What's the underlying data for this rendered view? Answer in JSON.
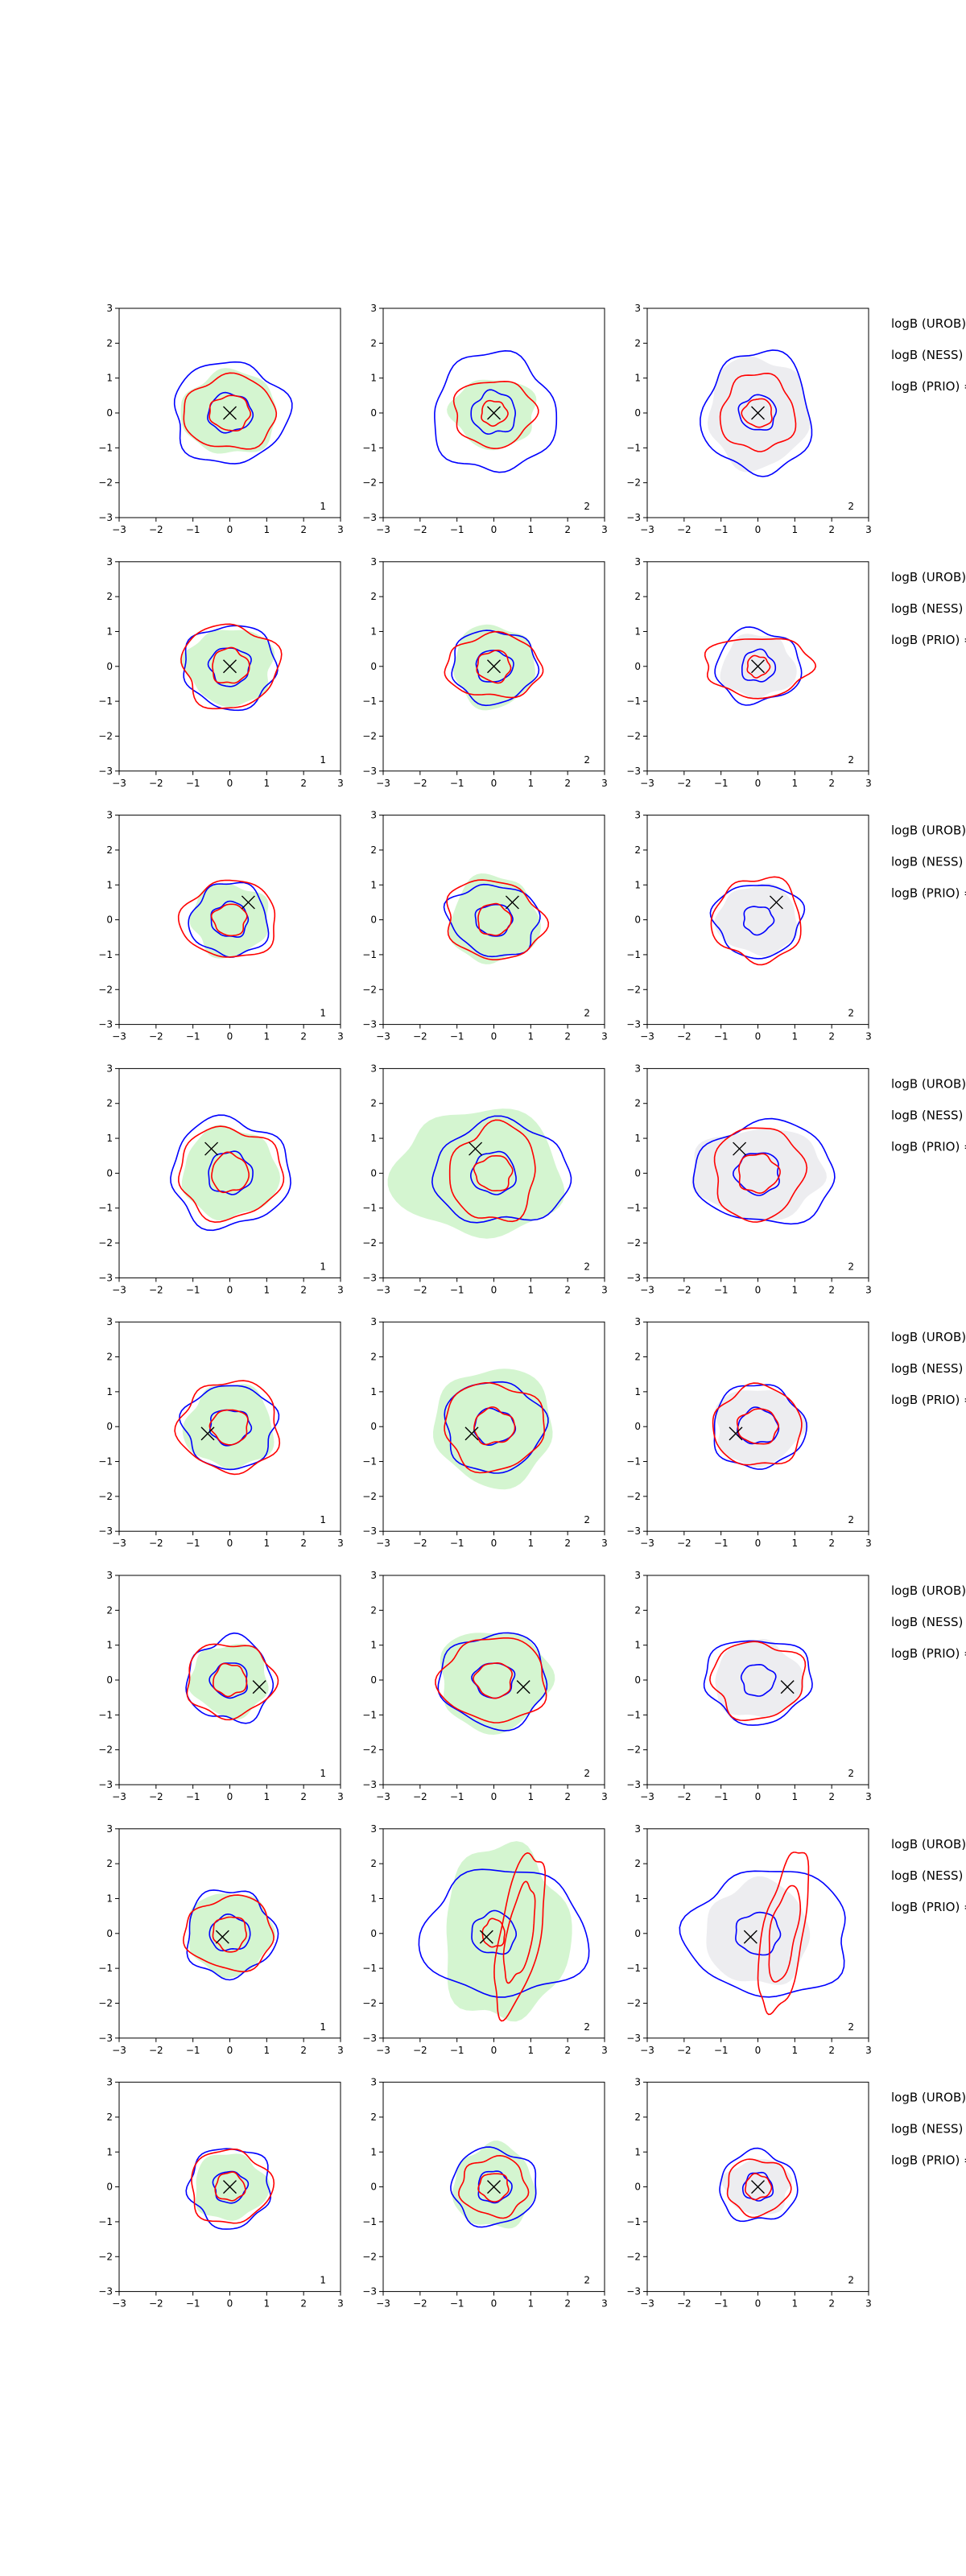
{
  "chart_data": {
    "type": "contour-grid",
    "rows": 8,
    "cols": 3,
    "xlim": [
      -3,
      3
    ],
    "ylim": [
      -3,
      3
    ],
    "xticks": [
      -3,
      -2,
      -1,
      0,
      1,
      2,
      3
    ],
    "yticks": [
      -3,
      -2,
      -1,
      0,
      1,
      2,
      3
    ],
    "col_corner_labels": [
      "1",
      "2",
      "2"
    ],
    "col_fill": [
      "green",
      "green",
      "grey"
    ],
    "row_annotations": [
      "logB (UROB)",
      "logB (NESS) =",
      "logB (PRIO) ="
    ],
    "series_colors": {
      "blue": "#0000ff",
      "red": "#ff0000",
      "green_fill": "#d4f5d0",
      "grey_fill": "#ededf0",
      "marker": "#000000"
    },
    "panels": [
      {
        "marker": [
          0.0,
          0.0
        ],
        "cols": [
          {
            "fill": [
              {
                "sx": 1.3,
                "sy": 1.2,
                "rot": 0
              }
            ],
            "blue": [
              {
                "sx": 1.55,
                "sy": 1.45,
                "rot": 0
              },
              {
                "sx": 0.6,
                "sy": 0.55,
                "rot": 0
              }
            ],
            "red": [
              {
                "sx": 1.25,
                "sy": 1.05,
                "rot": 0
              },
              {
                "sx": 0.55,
                "sy": 0.5,
                "rot": 0
              }
            ]
          },
          {
            "fill": [
              {
                "sx": 1.15,
                "sy": 1.0,
                "rot": 0
              }
            ],
            "blue": [
              {
                "sx": 1.65,
                "sy": 1.7,
                "rot": 0
              },
              {
                "sx": 0.6,
                "sy": 0.6,
                "rot": 0
              }
            ],
            "red": [
              {
                "sx": 1.1,
                "sy": 0.95,
                "rot": 0
              },
              {
                "sx": 0.35,
                "sy": 0.35,
                "rot": 0
              }
            ]
          },
          {
            "fill": [
              {
                "sx": 1.35,
                "sy": 1.6,
                "rot": 0
              },
              {
                "sx": 0.5,
                "sy": 0.5,
                "rot": 0
              }
            ],
            "blue": [
              {
                "sx": 1.45,
                "sy": 1.75,
                "rot": 0
              },
              {
                "sx": 0.5,
                "sy": 0.5,
                "rot": 0
              }
            ],
            "red": [
              {
                "sx": 1.0,
                "sy": 1.1,
                "rot": 0
              },
              {
                "sx": 0.4,
                "sy": 0.4,
                "rot": 0
              }
            ]
          }
        ]
      },
      {
        "marker": [
          0.0,
          0.0
        ],
        "cols": [
          {
            "fill": [
              {
                "sx": 1.2,
                "sy": 1.1,
                "rot": 0
              }
            ],
            "blue": [
              {
                "sx": 1.25,
                "sy": 1.2,
                "rot": 0
              },
              {
                "sx": 0.55,
                "sy": 0.55,
                "rot": 0
              }
            ],
            "red": [
              {
                "sx": 1.3,
                "sy": 1.2,
                "rot": 0
              },
              {
                "sx": 0.5,
                "sy": 0.5,
                "rot": 0
              }
            ]
          },
          {
            "fill": [
              {
                "sx": 1.1,
                "sy": 1.2,
                "rot": 0
              }
            ],
            "blue": [
              {
                "sx": 1.15,
                "sy": 1.05,
                "rot": 0
              },
              {
                "sx": 0.5,
                "sy": 0.45,
                "rot": 0
              }
            ],
            "red": [
              {
                "sx": 1.3,
                "sy": 0.9,
                "rot": 0
              },
              {
                "sx": 0.45,
                "sy": 0.45,
                "rot": 0
              }
            ]
          },
          {
            "fill": [
              {
                "sx": 1.0,
                "sy": 0.9,
                "rot": 0
              }
            ],
            "blue": [
              {
                "sx": 1.15,
                "sy": 1.05,
                "rot": 0
              },
              {
                "sx": 0.45,
                "sy": 0.45,
                "rot": 0
              }
            ],
            "red": [
              {
                "sx": 1.45,
                "sy": 0.85,
                "rot": 0
              },
              {
                "sx": 0.3,
                "sy": 0.3,
                "rot": 0
              }
            ]
          }
        ]
      },
      {
        "marker": [
          0.5,
          0.5
        ],
        "cols": [
          {
            "fill": [
              {
                "sx": 1.05,
                "sy": 1.05,
                "rot": 0
              }
            ],
            "blue": [
              {
                "sx": 1.05,
                "sy": 1.05,
                "rot": 0
              },
              {
                "sx": 0.5,
                "sy": 0.5,
                "rot": 0
              }
            ],
            "red": [
              {
                "sx": 1.3,
                "sy": 1.1,
                "rot": 0
              },
              {
                "sx": 0.45,
                "sy": 0.45,
                "rot": 0
              }
            ]
          },
          {
            "fill": [
              {
                "sx": 1.2,
                "sy": 1.25,
                "rot": 0
              }
            ],
            "blue": [
              {
                "sx": 1.25,
                "sy": 1.0,
                "rot": -15
              },
              {
                "sx": 0.5,
                "sy": 0.45,
                "rot": 0
              }
            ],
            "red": [
              {
                "sx": 1.35,
                "sy": 1.1,
                "rot": -20
              },
              {
                "sx": 0.45,
                "sy": 0.45,
                "rot": 0
              }
            ]
          },
          {
            "fill": [
              {
                "sx": 1.1,
                "sy": 1.0,
                "rot": 0
              }
            ],
            "blue": [
              {
                "sx": 1.2,
                "sy": 1.05,
                "rot": 0
              },
              {
                "sx": 0.4,
                "sy": 0.4,
                "rot": 0
              }
            ],
            "red": [
              {
                "sx": 1.2,
                "sy": 1.2,
                "rot": -20
              }
            ]
          }
        ]
      },
      {
        "marker": [
          -0.5,
          0.7
        ],
        "cols": [
          {
            "fill": [
              {
                "sx": 1.3,
                "sy": 1.3,
                "rot": 0
              }
            ],
            "blue": [
              {
                "sx": 1.6,
                "sy": 1.55,
                "rot": 0
              },
              {
                "sx": 0.6,
                "sy": 0.6,
                "rot": 0
              }
            ],
            "red": [
              {
                "sx": 1.4,
                "sy": 1.3,
                "rot": 0
              },
              {
                "sx": 0.5,
                "sy": 0.55,
                "rot": 0
              }
            ]
          },
          {
            "fill": [
              {
                "sx": 2.3,
                "sy": 1.8,
                "rot": 0,
                "cx": -0.4
              }
            ],
            "blue": [
              {
                "sx": 1.85,
                "sy": 1.45,
                "rot": 0,
                "cx": 0.2
              },
              {
                "sx": 0.6,
                "sy": 0.6,
                "rot": 0
              }
            ],
            "red": [
              {
                "sx": 1.15,
                "sy": 1.4,
                "rot": -10
              },
              {
                "sx": 0.5,
                "sy": 0.5,
                "rot": 0
              }
            ]
          },
          {
            "fill": [
              {
                "sx": 1.8,
                "sy": 1.3,
                "rot": 0
              }
            ],
            "blue": [
              {
                "sx": 1.9,
                "sy": 1.45,
                "rot": 0,
                "cx": 0.2
              },
              {
                "sx": 0.6,
                "sy": 0.6,
                "rot": 0
              }
            ],
            "red": [
              {
                "sx": 1.2,
                "sy": 1.35,
                "rot": -10
              },
              {
                "sx": 0.55,
                "sy": 0.55,
                "rot": 0
              }
            ]
          }
        ]
      },
      {
        "marker": [
          -0.6,
          -0.2
        ],
        "cols": [
          {
            "fill": [
              {
                "sx": 1.2,
                "sy": 1.2,
                "rot": 0
              }
            ],
            "blue": [
              {
                "sx": 1.25,
                "sy": 1.2,
                "rot": 0
              },
              {
                "sx": 0.55,
                "sy": 0.5,
                "rot": 0
              }
            ],
            "red": [
              {
                "sx": 1.35,
                "sy": 1.3,
                "rot": 0
              },
              {
                "sx": 0.5,
                "sy": 0.5,
                "rot": 0
              }
            ]
          },
          {
            "fill": [
              {
                "sx": 1.6,
                "sy": 1.7,
                "rot": 0
              }
            ],
            "blue": [
              {
                "sx": 1.35,
                "sy": 1.3,
                "rot": 0
              },
              {
                "sx": 0.55,
                "sy": 0.5,
                "rot": 0
              }
            ],
            "red": [
              {
                "sx": 1.35,
                "sy": 1.25,
                "rot": 0
              },
              {
                "sx": 0.55,
                "sy": 0.5,
                "rot": 0
              }
            ]
          },
          {
            "fill": [
              {
                "sx": 1.2,
                "sy": 1.1,
                "rot": 0
              }
            ],
            "blue": [
              {
                "sx": 1.25,
                "sy": 1.2,
                "rot": 0
              },
              {
                "sx": 0.55,
                "sy": 0.5,
                "rot": 0
              }
            ],
            "red": [
              {
                "sx": 1.2,
                "sy": 1.15,
                "rot": 0
              },
              {
                "sx": 0.55,
                "sy": 0.5,
                "rot": 0
              }
            ]
          }
        ]
      },
      {
        "marker": [
          0.8,
          -0.2
        ],
        "cols": [
          {
            "fill": [
              {
                "sx": 1.05,
                "sy": 1.05,
                "rot": 0
              }
            ],
            "blue": [
              {
                "sx": 1.15,
                "sy": 1.2,
                "rot": 0
              },
              {
                "sx": 0.5,
                "sy": 0.5,
                "rot": 0
              }
            ],
            "red": [
              {
                "sx": 1.2,
                "sy": 1.05,
                "rot": 0
              },
              {
                "sx": 0.45,
                "sy": 0.45,
                "rot": 0
              }
            ]
          },
          {
            "fill": [
              {
                "sx": 1.5,
                "sy": 1.45,
                "rot": 0
              }
            ],
            "blue": [
              {
                "sx": 1.45,
                "sy": 1.35,
                "rot": 0
              },
              {
                "sx": 0.55,
                "sy": 0.5,
                "rot": 0
              }
            ],
            "red": [
              {
                "sx": 1.45,
                "sy": 1.2,
                "rot": 0
              },
              {
                "sx": 0.5,
                "sy": 0.5,
                "rot": 0
              }
            ]
          },
          {
            "fill": [
              {
                "sx": 1.2,
                "sy": 1.1,
                "rot": 0
              }
            ],
            "blue": [
              {
                "sx": 1.45,
                "sy": 1.2,
                "rot": 0
              },
              {
                "sx": 0.45,
                "sy": 0.45,
                "rot": 0
              }
            ],
            "red": [
              {
                "sx": 1.25,
                "sy": 1.1,
                "rot": 0
              }
            ]
          }
        ]
      },
      {
        "marker": [
          -0.2,
          -0.1
        ],
        "cols": [
          {
            "fill": [
              {
                "sx": 1.15,
                "sy": 1.2,
                "rot": 0
              }
            ],
            "blue": [
              {
                "sx": 1.2,
                "sy": 1.25,
                "rot": 0
              },
              {
                "sx": 0.55,
                "sy": 0.5,
                "rot": 0
              }
            ],
            "red": [
              {
                "sx": 1.2,
                "sy": 1.05,
                "rot": 0
              },
              {
                "sx": 0.45,
                "sy": 0.5,
                "rot": 0
              }
            ]
          },
          {
            "fill": [
              {
                "sx": 1.7,
                "sy": 2.5,
                "rot": 0,
                "cx": 0.3
              }
            ],
            "blue": [
              {
                "sx": 2.25,
                "sy": 1.8,
                "rot": 0,
                "cx": 0.3
              },
              {
                "sx": 0.6,
                "sy": 0.6,
                "rot": 0
              }
            ],
            "red": [
              {
                "sx": 0.55,
                "sy": 2.35,
                "rot": -10,
                "cx": 0.7
              },
              {
                "sx": 0.35,
                "sy": 1.4,
                "rot": -10,
                "cx": 0.7
              },
              {
                "sx": 0.3,
                "sy": 0.4,
                "rot": 0
              }
            ]
          },
          {
            "fill": [
              {
                "sx": 1.4,
                "sy": 1.5,
                "rot": 0
              }
            ],
            "blue": [
              {
                "sx": 2.2,
                "sy": 1.8,
                "rot": 0,
                "cx": 0.3
              },
              {
                "sx": 0.6,
                "sy": 0.6,
                "rot": 0
              }
            ],
            "red": [
              {
                "sx": 0.55,
                "sy": 2.35,
                "rot": -10,
                "cx": 0.7
              },
              {
                "sx": 0.35,
                "sy": 1.4,
                "rot": -10,
                "cx": 0.7
              }
            ]
          }
        ]
      },
      {
        "marker": [
          0.0,
          0.0
        ],
        "cols": [
          {
            "fill": [
              {
                "sx": 1.0,
                "sy": 0.95,
                "rot": 0
              }
            ],
            "blue": [
              {
                "sx": 1.1,
                "sy": 1.15,
                "rot": 0
              },
              {
                "sx": 0.45,
                "sy": 0.45,
                "rot": 0
              }
            ],
            "red": [
              {
                "sx": 1.1,
                "sy": 1.05,
                "rot": 0
              },
              {
                "sx": 0.4,
                "sy": 0.4,
                "rot": 0
              }
            ]
          },
          {
            "fill": [
              {
                "sx": 1.1,
                "sy": 1.2,
                "rot": 0
              }
            ],
            "blue": [
              {
                "sx": 1.15,
                "sy": 1.1,
                "rot": 0
              },
              {
                "sx": 0.45,
                "sy": 0.45,
                "rot": 0
              }
            ],
            "red": [
              {
                "sx": 0.9,
                "sy": 0.85,
                "rot": 0
              },
              {
                "sx": 0.4,
                "sy": 0.4,
                "rot": 0
              }
            ]
          },
          {
            "fill": [
              {
                "sx": 0.9,
                "sy": 0.8,
                "rot": 0
              }
            ],
            "blue": [
              {
                "sx": 1.05,
                "sy": 1.0,
                "rot": 0
              },
              {
                "sx": 0.4,
                "sy": 0.4,
                "rot": 0
              }
            ],
            "red": [
              {
                "sx": 0.85,
                "sy": 0.8,
                "rot": 0
              },
              {
                "sx": 0.35,
                "sy": 0.35,
                "rot": 0
              }
            ]
          }
        ]
      }
    ]
  }
}
